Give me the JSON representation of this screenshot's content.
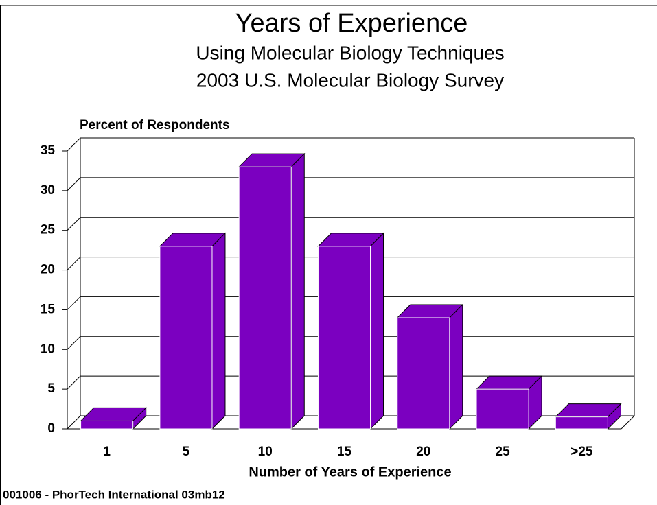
{
  "chart_data": {
    "type": "bar",
    "title": "Years of Experience",
    "subtitle": "Using Molecular Biology Techniques",
    "subtitle2": "2003 U.S. Molecular Biology Survey",
    "y_label": "Percent of Respondents",
    "x_label": "Number of Years of Experience",
    "footer": "001006 - PhorTech International 03mb12",
    "categories": [
      "1",
      "5",
      "10",
      "15",
      "20",
      "25",
      ">25"
    ],
    "values": [
      1,
      23,
      33,
      23,
      14,
      5,
      1.5
    ],
    "color": "#7b00c0",
    "ylim": [
      0,
      35
    ],
    "yticks": [
      0,
      5,
      10,
      15,
      20,
      25,
      30,
      35
    ],
    "grid": true
  }
}
